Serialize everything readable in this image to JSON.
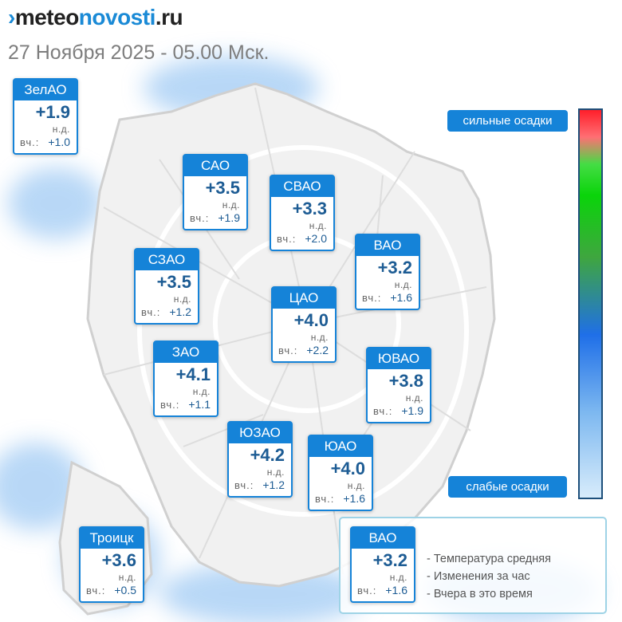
{
  "header": {
    "logo_mark": "›",
    "logo_part1": "meteo",
    "logo_part2": "novosti",
    "logo_part3": ".ru",
    "datetime": "27 Ноября 2025 - 05.00 Мск."
  },
  "districts": [
    {
      "name": "ЗелАО",
      "temp": "+1.9",
      "change": "н.д.",
      "yesterday_label": "вч.:",
      "yesterday": "+1.0"
    },
    {
      "name": "САО",
      "temp": "+3.5",
      "change": "н.д.",
      "yesterday_label": "вч.:",
      "yesterday": "+1.9"
    },
    {
      "name": "СВАО",
      "temp": "+3.3",
      "change": "н.д.",
      "yesterday_label": "вч.:",
      "yesterday": "+2.0"
    },
    {
      "name": "ВАО",
      "temp": "+3.2",
      "change": "н.д.",
      "yesterday_label": "вч.:",
      "yesterday": "+1.6"
    },
    {
      "name": "СЗАО",
      "temp": "+3.5",
      "change": "н.д.",
      "yesterday_label": "вч.:",
      "yesterday": "+1.2"
    },
    {
      "name": "ЦАО",
      "temp": "+4.0",
      "change": "н.д.",
      "yesterday_label": "вч.:",
      "yesterday": "+2.2"
    },
    {
      "name": "ЗАО",
      "temp": "+4.1",
      "change": "н.д.",
      "yesterday_label": "вч.:",
      "yesterday": "+1.1"
    },
    {
      "name": "ЮВАО",
      "temp": "+3.8",
      "change": "н.д.",
      "yesterday_label": "вч.:",
      "yesterday": "+1.9"
    },
    {
      "name": "ЮЗАО",
      "temp": "+4.2",
      "change": "н.д.",
      "yesterday_label": "вч.:",
      "yesterday": "+1.2"
    },
    {
      "name": "ЮАО",
      "temp": "+4.0",
      "change": "н.д.",
      "yesterday_label": "вч.:",
      "yesterday": "+1.6"
    },
    {
      "name": "Троицк",
      "temp": "+3.6",
      "change": "н.д.",
      "yesterday_label": "вч.:",
      "yesterday": "+0.5"
    }
  ],
  "scale": {
    "top_label": "сильные осадки",
    "bottom_label": "слабые осадки"
  },
  "legend": {
    "sample": {
      "name": "ВАО",
      "temp": "+3.2",
      "change": "н.д.",
      "yesterday_label": "вч.:",
      "yesterday": "+1.6"
    },
    "items": [
      "- Температура средняя",
      "- Изменения за час",
      "- Вчера в это время"
    ]
  },
  "colors": {
    "accent": "#1583d8",
    "temperature_text": "#1d5c94",
    "precip_light": "#8fc3f2"
  }
}
